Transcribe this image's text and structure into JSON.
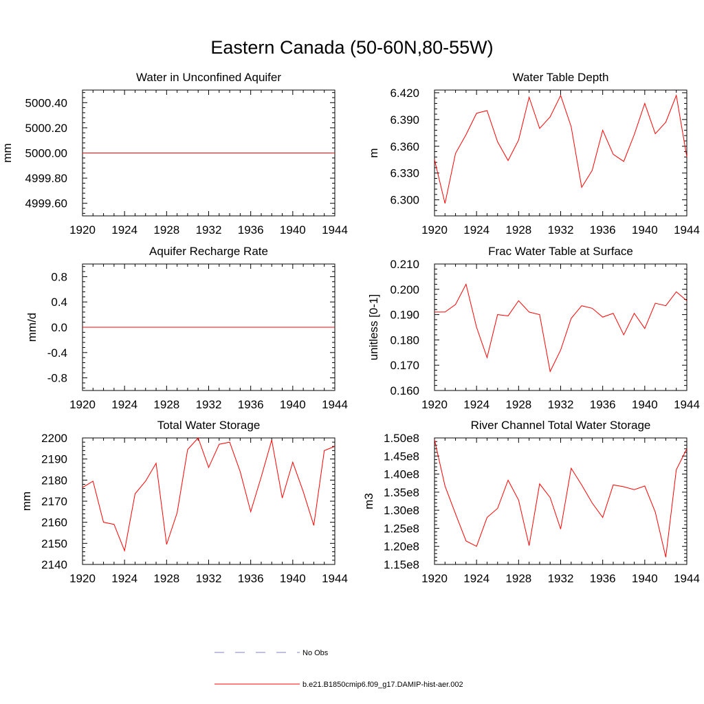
{
  "title": "Eastern Canada (50-60N,80-55W)",
  "colors": {
    "model": "#ff0000",
    "obs": "#8080c0",
    "axis": "#000000"
  },
  "legend": {
    "obs_label": "No Obs",
    "model_label": "b.e21.B1850cmip6.f09_g17.DAMIP-hist-aer.002"
  },
  "chart_data": [
    {
      "type": "line",
      "title": "Water in Unconfined Aquifer",
      "ylabel": "mm",
      "xlim": [
        1920,
        1944
      ],
      "ylim": [
        4999.5,
        5000.5
      ],
      "xticks": [
        1920,
        1924,
        1928,
        1932,
        1936,
        1940,
        1944
      ],
      "xtick_labels": [
        "1920",
        "1924",
        "1928",
        "1932",
        "1936",
        "1940",
        "1944"
      ],
      "yticks": [
        4999.6,
        4999.8,
        5000.0,
        5000.2,
        5000.4
      ],
      "ytick_labels": [
        "4999.60",
        "4999.80",
        "5000.00",
        "5000.20",
        "5000.40"
      ],
      "x": [
        1920,
        1921,
        1922,
        1923,
        1924,
        1925,
        1926,
        1927,
        1928,
        1929,
        1930,
        1931,
        1932,
        1933,
        1934,
        1935,
        1936,
        1937,
        1938,
        1939,
        1940,
        1941,
        1942,
        1943,
        1944
      ],
      "y": [
        5000,
        5000,
        5000,
        5000,
        5000,
        5000,
        5000,
        5000,
        5000,
        5000,
        5000,
        5000,
        5000,
        5000,
        5000,
        5000,
        5000,
        5000,
        5000,
        5000,
        5000,
        5000,
        5000,
        5000,
        5000
      ]
    },
    {
      "type": "line",
      "title": "Water Table Depth",
      "ylabel": "m",
      "xlim": [
        1920,
        1944
      ],
      "ylim": [
        6.282,
        6.423
      ],
      "xticks": [
        1920,
        1924,
        1928,
        1932,
        1936,
        1940,
        1944
      ],
      "xtick_labels": [
        "1920",
        "1924",
        "1928",
        "1932",
        "1936",
        "1940",
        "1944"
      ],
      "yticks": [
        6.3,
        6.33,
        6.36,
        6.39,
        6.42
      ],
      "ytick_labels": [
        "6.300",
        "6.330",
        "6.360",
        "6.390",
        "6.420"
      ],
      "x": [
        1920,
        1921,
        1922,
        1923,
        1924,
        1925,
        1926,
        1927,
        1928,
        1929,
        1930,
        1931,
        1932,
        1933,
        1934,
        1935,
        1936,
        1937,
        1938,
        1939,
        1940,
        1941,
        1942,
        1943,
        1944
      ],
      "y": [
        6.345,
        6.296,
        6.352,
        6.373,
        6.397,
        6.4,
        6.365,
        6.344,
        6.367,
        6.415,
        6.38,
        6.393,
        6.417,
        6.382,
        6.314,
        6.333,
        6.378,
        6.351,
        6.343,
        6.373,
        6.408,
        6.374,
        6.387,
        6.417,
        6.348
      ]
    },
    {
      "type": "line",
      "title": "Aquifer Recharge Rate",
      "ylabel": "mm/d",
      "xlim": [
        1920,
        1944
      ],
      "ylim": [
        -1.0,
        1.0
      ],
      "xticks": [
        1920,
        1924,
        1928,
        1932,
        1936,
        1940,
        1944
      ],
      "xtick_labels": [
        "1920",
        "1924",
        "1928",
        "1932",
        "1936",
        "1940",
        "1944"
      ],
      "yticks": [
        -0.8,
        -0.4,
        0.0,
        0.4,
        0.8
      ],
      "ytick_labels": [
        "-0.8",
        "-0.4",
        "0.0",
        "0.4",
        "0.8"
      ],
      "x": [
        1920,
        1921,
        1922,
        1923,
        1924,
        1925,
        1926,
        1927,
        1928,
        1929,
        1930,
        1931,
        1932,
        1933,
        1934,
        1935,
        1936,
        1937,
        1938,
        1939,
        1940,
        1941,
        1942,
        1943,
        1944
      ],
      "y": [
        0,
        0,
        0,
        0,
        0,
        0,
        0,
        0,
        0,
        0,
        0,
        0,
        0,
        0,
        0,
        0,
        0,
        0,
        0,
        0,
        0,
        0,
        0,
        0,
        0
      ]
    },
    {
      "type": "line",
      "title": "Frac Water Table at Surface",
      "ylabel": "unitless [0-1]",
      "xlim": [
        1920,
        1944
      ],
      "ylim": [
        0.16,
        0.21
      ],
      "xticks": [
        1920,
        1924,
        1928,
        1932,
        1936,
        1940,
        1944
      ],
      "xtick_labels": [
        "1920",
        "1924",
        "1928",
        "1932",
        "1936",
        "1940",
        "1944"
      ],
      "yticks": [
        0.16,
        0.17,
        0.18,
        0.19,
        0.2,
        0.21
      ],
      "ytick_labels": [
        "0.160",
        "0.170",
        "0.180",
        "0.190",
        "0.200",
        "0.210"
      ],
      "x": [
        1920,
        1921,
        1922,
        1923,
        1924,
        1925,
        1926,
        1927,
        1928,
        1929,
        1930,
        1931,
        1932,
        1933,
        1934,
        1935,
        1936,
        1937,
        1938,
        1939,
        1940,
        1941,
        1942,
        1943,
        1944
      ],
      "y": [
        0.191,
        0.191,
        0.194,
        0.202,
        0.185,
        0.173,
        0.19,
        0.1895,
        0.1955,
        0.191,
        0.19,
        0.1675,
        0.176,
        0.1885,
        0.1935,
        0.1925,
        0.189,
        0.1905,
        0.182,
        0.1905,
        0.1845,
        0.1945,
        0.1935,
        0.199,
        0.1955
      ]
    },
    {
      "type": "line",
      "title": "Total Water Storage",
      "ylabel": "mm",
      "xlim": [
        1920,
        1944
      ],
      "ylim": [
        2140,
        2200
      ],
      "xticks": [
        1920,
        1924,
        1928,
        1932,
        1936,
        1940,
        1944
      ],
      "xtick_labels": [
        "1920",
        "1924",
        "1928",
        "1932",
        "1936",
        "1940",
        "1944"
      ],
      "yticks": [
        2140,
        2150,
        2160,
        2170,
        2180,
        2190,
        2200
      ],
      "ytick_labels": [
        "2140",
        "2150",
        "2160",
        "2170",
        "2180",
        "2190",
        "2200"
      ],
      "x": [
        1920,
        1921,
        1922,
        1923,
        1924,
        1925,
        1926,
        1927,
        1928,
        1929,
        1930,
        1931,
        1932,
        1933,
        1934,
        1935,
        1936,
        1937,
        1938,
        1939,
        1940,
        1941,
        1942,
        1943,
        1944
      ],
      "y": [
        2176.5,
        2179.5,
        2160,
        2159,
        2146.5,
        2173.5,
        2179.5,
        2188,
        2149.5,
        2164.5,
        2194.5,
        2200,
        2186,
        2197,
        2198,
        2184,
        2165,
        2181.5,
        2199,
        2171.5,
        2188.5,
        2174.5,
        2158.5,
        2194,
        2196
      ]
    },
    {
      "type": "line",
      "title": "River Channel Total Water Storage",
      "ylabel": "m3",
      "xlim": [
        1920,
        1944
      ],
      "ylim": [
        115000000.0,
        150000000.0
      ],
      "xticks": [
        1920,
        1924,
        1928,
        1932,
        1936,
        1940,
        1944
      ],
      "xtick_labels": [
        "1920",
        "1924",
        "1928",
        "1932",
        "1936",
        "1940",
        "1944"
      ],
      "yticks": [
        115000000.0,
        120000000.0,
        125000000.0,
        130000000.0,
        135000000.0,
        140000000.0,
        145000000.0,
        150000000.0
      ],
      "ytick_labels": [
        "1.15e8",
        "1.20e8",
        "1.25e8",
        "1.30e8",
        "1.35e8",
        "1.40e8",
        "1.45e8",
        "1.50e8"
      ],
      "x": [
        1920,
        1921,
        1922,
        1923,
        1924,
        1925,
        1926,
        1927,
        1928,
        1929,
        1930,
        1931,
        1932,
        1933,
        1934,
        1935,
        1936,
        1937,
        1938,
        1939,
        1940,
        1941,
        1942,
        1943,
        1944
      ],
      "y": [
        149500000.0,
        136700000.0,
        129000000.0,
        121500000.0,
        120000000.0,
        128000000.0,
        130500000.0,
        138300000.0,
        132800000.0,
        120200000.0,
        137300000.0,
        133500000.0,
        124800000.0,
        141600000.0,
        137000000.0,
        132000000.0,
        128000000.0,
        137000000.0,
        136500000.0,
        135700000.0,
        136700000.0,
        129500000.0,
        117000000.0,
        141200000.0,
        147000000.0
      ]
    }
  ]
}
